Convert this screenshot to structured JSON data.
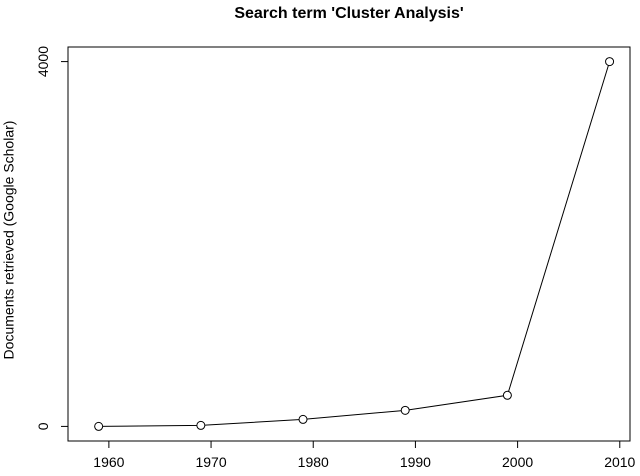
{
  "chart_data": {
    "type": "line",
    "title": "Search term 'Cluster Analysis'",
    "y_label": "Documents retrieved (Google Scholar)",
    "x": [
      1959,
      1969,
      1979,
      1989,
      1999,
      2009
    ],
    "values": [
      0,
      11,
      77,
      176,
      341,
      4000
    ],
    "color": "#000000",
    "xlim": [
      1956,
      2011
    ],
    "xticks": [
      1960,
      1970,
      1980,
      1990,
      2000,
      2010
    ],
    "ylim": [
      -160,
      4160
    ],
    "yticks": [
      0,
      4000
    ]
  }
}
